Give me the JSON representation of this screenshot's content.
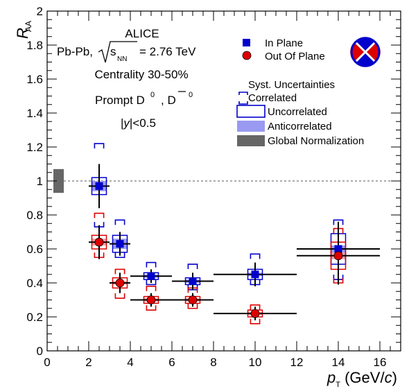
{
  "chart_data": {
    "type": "scatter",
    "xlabel": "p_T (GeV/c)",
    "ylabel": "R_AA",
    "xlim": [
      0,
      17
    ],
    "ylim": [
      0,
      2
    ],
    "xticks": [
      "0",
      "2",
      "4",
      "6",
      "8",
      "10",
      "12",
      "14",
      "16"
    ],
    "yticks": [
      "0",
      "0.2",
      "0.4",
      "0.6",
      "0.8",
      "1",
      "1.2",
      "1.4",
      "1.6",
      "1.8",
      "2"
    ],
    "reference_line": 1,
    "global_normalization": {
      "x_range": [
        0.3,
        0.8
      ],
      "y_range": [
        0.93,
        1.07
      ],
      "color": "#666666"
    },
    "annotations": {
      "experiment": "ALICE",
      "system": "Pb-Pb, √s_NN = 2.76 TeV",
      "centrality": "Centrality 30-50%",
      "particle": "Prompt D⁰, D̄⁰",
      "rapidity": "|y|<0.5"
    },
    "legend": {
      "placement": "top-right",
      "in_plane": "In Plane",
      "out_of_plane": "Out Of Plane",
      "syst_header": "Syst. Uncertainties",
      "correlated": "Correlated",
      "uncorrelated": "Uncorrelated",
      "anticorrelated": "Anticorrelated",
      "global": "Global Normalization"
    },
    "series": [
      {
        "name": "In Plane",
        "marker": "square",
        "color": "#0000cc",
        "points": [
          {
            "x": 2.5,
            "xlo": 2,
            "xhi": 3,
            "y": 0.97,
            "stat": 0.13,
            "corr": [
              0.73,
              1.22
            ],
            "uncorr": 0.05,
            "anti": 0.03
          },
          {
            "x": 3.5,
            "xlo": 3,
            "xhi": 4,
            "y": 0.63,
            "stat": 0.07,
            "corr": [
              0.55,
              0.77
            ],
            "uncorr": 0.05,
            "anti": 0.03
          },
          {
            "x": 5,
            "xlo": 4,
            "xhi": 6,
            "y": 0.44,
            "stat": 0.04,
            "corr": [
              0.39,
              0.52
            ],
            "uncorr": 0.02,
            "anti": 0.01
          },
          {
            "x": 7,
            "xlo": 6,
            "xhi": 8,
            "y": 0.41,
            "stat": 0.05,
            "corr": [
              0.36,
              0.51
            ],
            "uncorr": 0.02,
            "anti": 0.01
          },
          {
            "x": 10,
            "xlo": 8,
            "xhi": 12,
            "y": 0.45,
            "stat": 0.07,
            "corr": [
              0.39,
              0.57
            ],
            "uncorr": 0.03,
            "anti": 0.01
          },
          {
            "x": 14,
            "xlo": 12,
            "xhi": 16,
            "y": 0.6,
            "stat": 0.16,
            "corr": [
              0.42,
              0.77
            ],
            "uncorr": 0.09,
            "anti": 0.02
          }
        ]
      },
      {
        "name": "Out Of Plane",
        "marker": "circle",
        "color": "#dd0000",
        "points": [
          {
            "x": 2.5,
            "xlo": 2,
            "xhi": 3,
            "y": 0.64,
            "stat": 0.1,
            "corr": [
              0.55,
              0.81
            ],
            "uncorr": 0.04,
            "anti": 0.02
          },
          {
            "x": 3.5,
            "xlo": 3,
            "xhi": 4,
            "y": 0.4,
            "stat": 0.06,
            "corr": [
              0.31,
              0.48
            ],
            "uncorr": 0.03,
            "anti": 0.01
          },
          {
            "x": 5,
            "xlo": 4,
            "xhi": 6,
            "y": 0.3,
            "stat": 0.04,
            "corr": [
              0.24,
              0.38
            ],
            "uncorr": 0.02,
            "anti": 0.01
          },
          {
            "x": 7,
            "xlo": 6,
            "xhi": 8,
            "y": 0.3,
            "stat": 0.04,
            "corr": [
              0.25,
              0.37
            ],
            "uncorr": 0.02,
            "anti": 0.01
          },
          {
            "x": 10,
            "xlo": 8,
            "xhi": 12,
            "y": 0.22,
            "stat": 0.04,
            "corr": [
              0.16,
              0.27
            ],
            "uncorr": 0.02,
            "anti": 0.01
          },
          {
            "x": 14,
            "xlo": 12,
            "xhi": 16,
            "y": 0.56,
            "stat": 0.17,
            "corr": [
              0.4,
              0.72
            ],
            "uncorr": 0.08,
            "anti": 0.02
          }
        ]
      }
    ]
  }
}
